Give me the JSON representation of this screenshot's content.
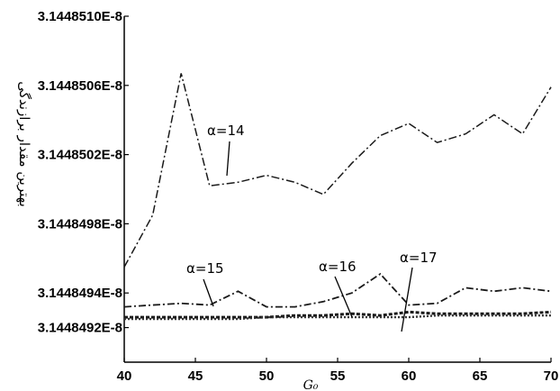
{
  "chart_data": {
    "type": "line",
    "title": "",
    "xlabel": "G₀",
    "ylabel": "بهترین مقدار برازندگی",
    "xlim": [
      40,
      70
    ],
    "ylim": [
      3.144849e-08,
      3.144851e-08
    ],
    "x_ticks": [
      40,
      45,
      50,
      55,
      60,
      65,
      70
    ],
    "x_tick_labels": [
      "40",
      "45",
      "50",
      "55",
      "60",
      "65",
      "70"
    ],
    "y_ticks": [
      3.1448492e-08,
      3.1448494e-08,
      3.1448498e-08,
      3.1448502e-08,
      3.1448506e-08,
      3.144851e-08
    ],
    "y_tick_labels": [
      "3.1448492E-8",
      "3.1448494E-8",
      "3.1448498E-8",
      "3.1448502E-8",
      "3.1448506E-8",
      "3.1448510E-8"
    ],
    "grid": false,
    "legend": "none",
    "x": [
      40,
      42,
      44,
      46,
      48,
      50,
      52,
      54,
      56,
      58,
      60,
      62,
      64,
      66,
      68,
      70
    ],
    "series": [
      {
        "label": "α=14",
        "values": [
          3.14484955e-08,
          3.14484985e-08,
          3.14485067e-08,
          3.14485002e-08,
          3.14485004e-08,
          3.14485008e-08,
          3.14485004e-08,
          3.14484997e-08,
          3.14485015e-08,
          3.14485031e-08,
          3.14485038e-08,
          3.14485027e-08,
          3.14485032e-08,
          3.14485043e-08,
          3.14485032e-08,
          3.14485059e-08
        ],
        "color": "#1a1a1a"
      },
      {
        "label": "α=15",
        "values": [
          3.14484932e-08,
          3.14484933e-08,
          3.14484934e-08,
          3.14484933e-08,
          3.14484941e-08,
          3.14484932e-08,
          3.14484932e-08,
          3.14484935e-08,
          3.1448494e-08,
          3.14484951e-08,
          3.14484933e-08,
          3.14484934e-08,
          3.14484943e-08,
          3.14484941e-08,
          3.14484943e-08,
          3.14484941e-08
        ],
        "color": "#1a1a1a"
      },
      {
        "label": "α=16",
        "values": [
          3.14484926e-08,
          3.14484926e-08,
          3.14484926e-08,
          3.14484926e-08,
          3.14484926e-08,
          3.14484926e-08,
          3.14484927e-08,
          3.14484927e-08,
          3.14484928e-08,
          3.14484927e-08,
          3.14484929e-08,
          3.14484928e-08,
          3.14484928e-08,
          3.14484928e-08,
          3.14484928e-08,
          3.14484929e-08
        ],
        "color": "#1a1a1a"
      },
      {
        "label": "α=17",
        "values": [
          3.14484925e-08,
          3.14484925e-08,
          3.14484925e-08,
          3.14484925e-08,
          3.14484925e-08,
          3.14484926e-08,
          3.14484926e-08,
          3.14484926e-08,
          3.14484926e-08,
          3.14484926e-08,
          3.14484926e-08,
          3.14484927e-08,
          3.14484927e-08,
          3.14484927e-08,
          3.14484927e-08,
          3.14484927e-08
        ],
        "color": "#333333"
      }
    ],
    "annotations": [
      {
        "text": "α=14",
        "series": 0
      },
      {
        "text": "α=15",
        "series": 1
      },
      {
        "text": "α=16",
        "series": 2
      },
      {
        "text": "α=17",
        "series": 3
      }
    ]
  }
}
